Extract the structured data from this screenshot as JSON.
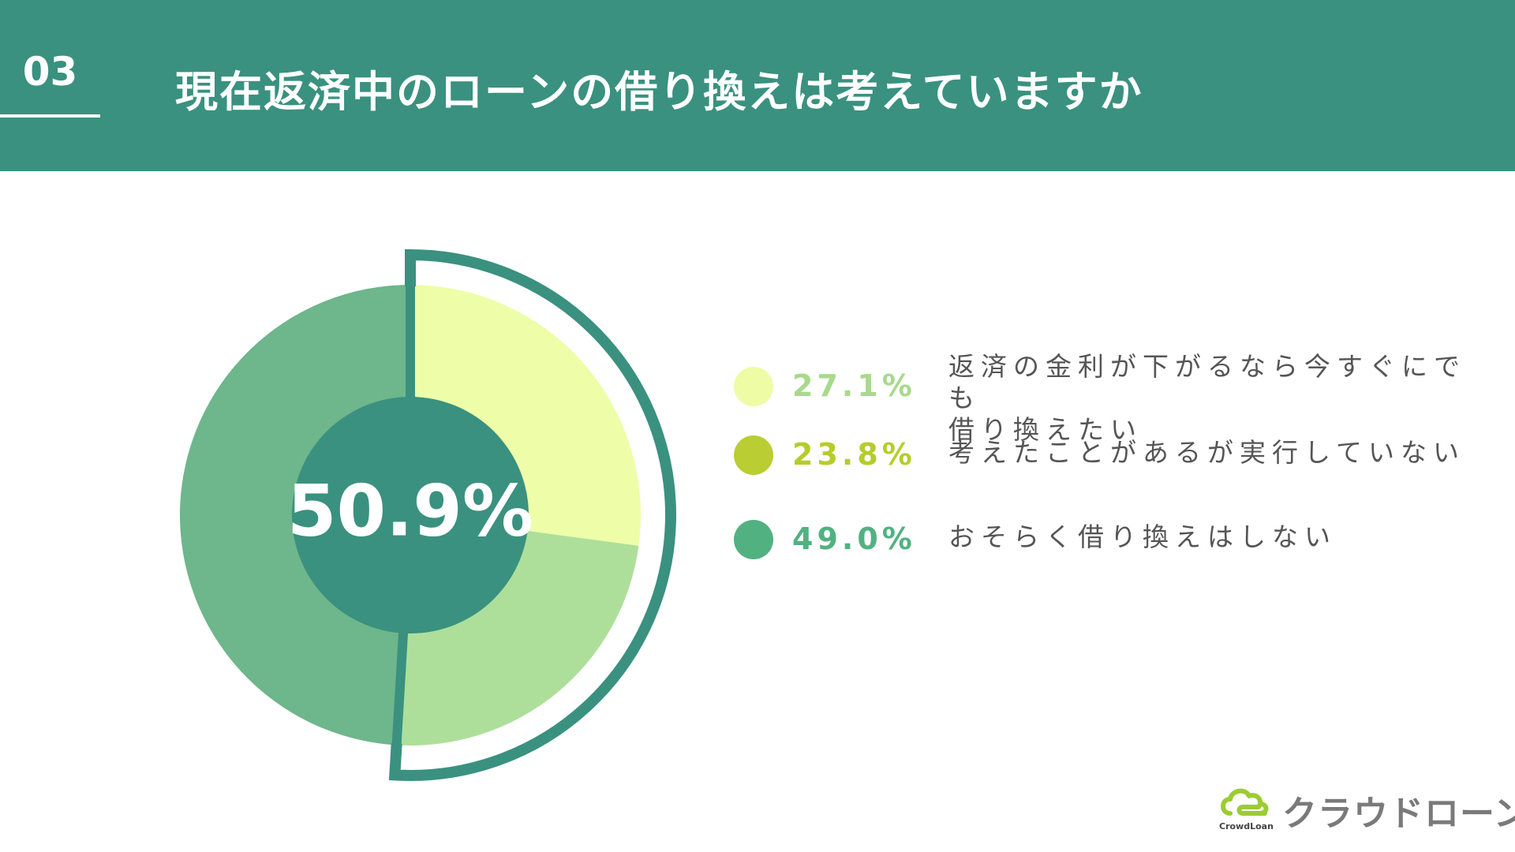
{
  "header": {
    "number": "03",
    "title": "現在返済中のローンの借り換えは考えていますか"
  },
  "chart_data": {
    "type": "pie",
    "title": "現在返済中のローンの借り換えは考えていますか",
    "highlight_value": "50.9%",
    "slices": [
      {
        "label_line1": "返済の金利が下がるなら今すぐにでも",
        "label_line2": "借り換えたい",
        "value": 27.1,
        "value_text": "27.1%",
        "color": "#eefda8",
        "legend_color": "#eefca6",
        "text_color": "#a8d98c"
      },
      {
        "label_line1": "考えたことがあるが実行していない",
        "label_line2": "",
        "value": 23.8,
        "value_text": "23.8%",
        "color": "#addf9b",
        "legend_color": "#bacd32",
        "text_color": "#b6cc2c"
      },
      {
        "label_line1": "おそらく借り換えはしない",
        "label_line2": "",
        "value": 49.0,
        "value_text": "49.0%",
        "color": "#6eb68b",
        "legend_color": "#52b181",
        "text_color": "#52b181"
      }
    ],
    "colors": {
      "ring": "#3a917f",
      "center": "#3a917f"
    }
  },
  "logo": {
    "text": "クラウドローン",
    "sub": "CrowdLoan"
  },
  "colors": {
    "header_bg": "#3a917f",
    "logo_green": "#9bcc33"
  }
}
